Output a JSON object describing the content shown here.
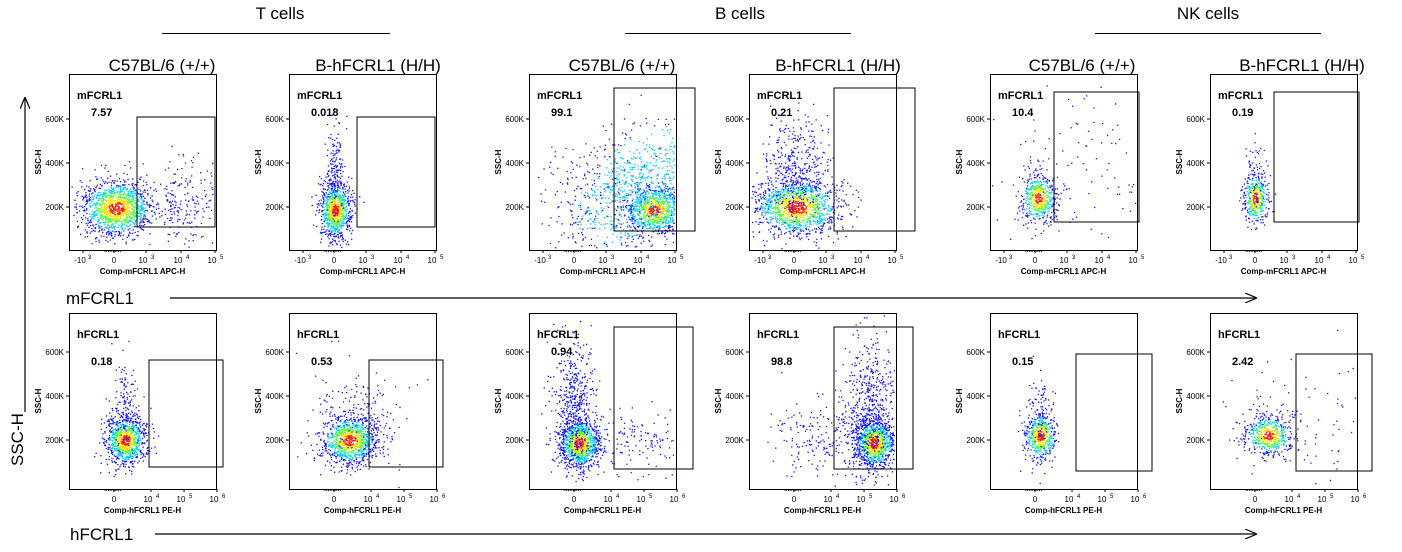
{
  "groups": [
    {
      "label": "T cells",
      "cx": 280
    },
    {
      "label": "B cells",
      "cx": 740
    },
    {
      "label": "NK cells",
      "cx": 1208
    }
  ],
  "strains": [
    "C57BL/6 (+/+)",
    "B-hFCRL1 (H/H)"
  ],
  "rows": [
    {
      "marker": "mFCRL1",
      "xlabel": "Comp-mFCRL1 APC-H",
      "ylabel": "SSC-H",
      "xticks": [
        "-10",
        "0",
        "10",
        "10",
        "10"
      ],
      "xexps": [
        "3",
        "",
        "3",
        "4",
        "5"
      ]
    },
    {
      "marker": "hFCRL1",
      "xlabel": "Comp-hFCRL1 PE-H",
      "ylabel": "SSC-H",
      "xticks": [
        "0",
        "10",
        "10",
        "10"
      ],
      "xexps": [
        "",
        "4",
        "5",
        "6"
      ]
    }
  ],
  "yticks": [
    "200K",
    "400K",
    "600K"
  ],
  "axis_labels": {
    "vertical": "SSC-H",
    "horizontal_top": "mFCRL1",
    "horizontal_bottom": "hFCRL1"
  },
  "colors": {
    "low": "#1414ff",
    "mid1": "#00d0ff",
    "mid2": "#50ff40",
    "high1": "#ffe000",
    "high2": "#ff2000"
  },
  "chart_data": [
    {
      "type": "scatter",
      "group": "T cells",
      "strain": "C57BL/6 (+/+)",
      "marker": "mFCRL1",
      "gate_percent": "7.57"
    },
    {
      "type": "scatter",
      "group": "T cells",
      "strain": "B-hFCRL1 (H/H)",
      "marker": "mFCRL1",
      "gate_percent": "0.018"
    },
    {
      "type": "scatter",
      "group": "B cells",
      "strain": "C57BL/6 (+/+)",
      "marker": "mFCRL1",
      "gate_percent": "99.1"
    },
    {
      "type": "scatter",
      "group": "B cells",
      "strain": "B-hFCRL1 (H/H)",
      "marker": "mFCRL1",
      "gate_percent": "0.21"
    },
    {
      "type": "scatter",
      "group": "NK cells",
      "strain": "C57BL/6 (+/+)",
      "marker": "mFCRL1",
      "gate_percent": "10.4"
    },
    {
      "type": "scatter",
      "group": "NK cells",
      "strain": "B-hFCRL1 (H/H)",
      "marker": "mFCRL1",
      "gate_percent": "0.19"
    },
    {
      "type": "scatter",
      "group": "T cells",
      "strain": "C57BL/6 (+/+)",
      "marker": "hFCRL1",
      "gate_percent": "0.18"
    },
    {
      "type": "scatter",
      "group": "T cells",
      "strain": "B-hFCRL1 (H/H)",
      "marker": "hFCRL1",
      "gate_percent": "0.53"
    },
    {
      "type": "scatter",
      "group": "B cells",
      "strain": "C57BL/6 (+/+)",
      "marker": "hFCRL1",
      "gate_percent": "0.94"
    },
    {
      "type": "scatter",
      "group": "B cells",
      "strain": "B-hFCRL1 (H/H)",
      "marker": "hFCRL1",
      "gate_percent": "98.8"
    },
    {
      "type": "scatter",
      "group": "NK cells",
      "strain": "C57BL/6 (+/+)",
      "marker": "hFCRL1",
      "gate_percent": "0.15"
    },
    {
      "type": "scatter",
      "group": "NK cells",
      "strain": "B-hFCRL1 (H/H)",
      "marker": "hFCRL1",
      "gate_percent": "2.42"
    }
  ]
}
